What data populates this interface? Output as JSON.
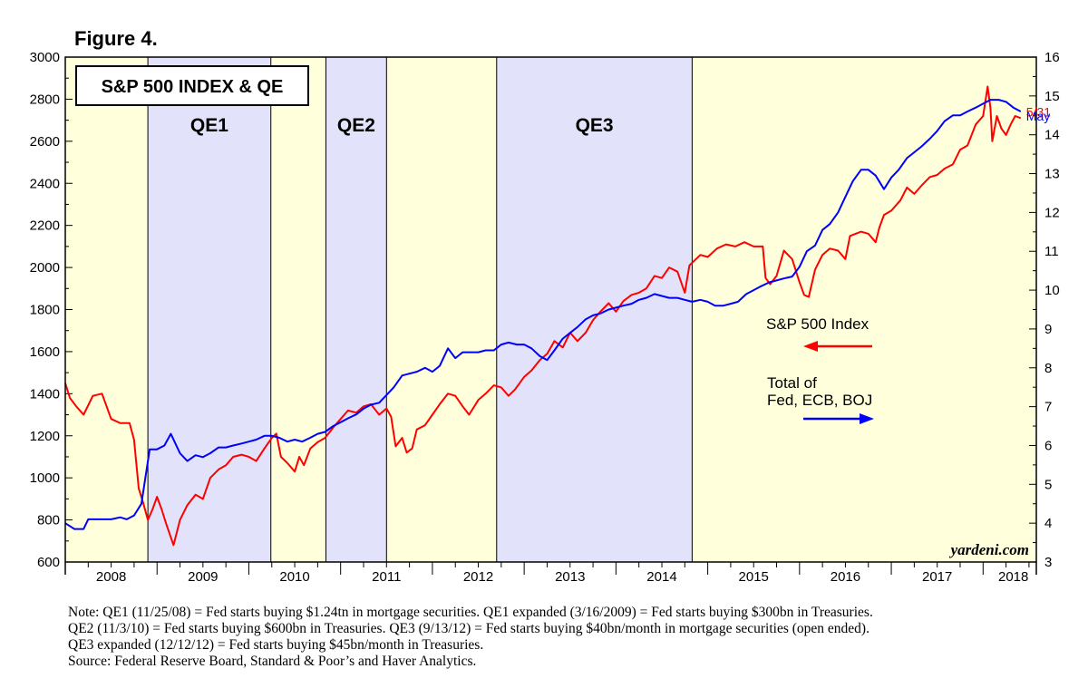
{
  "figure_label": "Figure 4.",
  "chart_data": {
    "type": "line",
    "title": "S&P 500 INDEX & QE",
    "credit": "yardeni.com",
    "x_range": [
      2008.0,
      2018.58
    ],
    "x_tick_labels": [
      "2008",
      "2009",
      "2010",
      "2011",
      "2012",
      "2013",
      "2014",
      "2015",
      "2016",
      "2017",
      "2018"
    ],
    "y_left": {
      "range": [
        600,
        3000
      ],
      "ticks": [
        600,
        800,
        1000,
        1200,
        1400,
        1600,
        1800,
        2000,
        2200,
        2400,
        2600,
        2800,
        3000
      ]
    },
    "y_right": {
      "range": [
        3,
        16
      ],
      "ticks": [
        3,
        4,
        5,
        6,
        7,
        8,
        9,
        10,
        11,
        12,
        13,
        14,
        15,
        16
      ]
    },
    "colors": {
      "panel": "#ffffdc",
      "qe_band": "#e2e3fa",
      "sp500": "#ff0000",
      "cb_assets": "#0000ff"
    },
    "qe_periods": [
      {
        "label": "QE1",
        "start": 2008.9,
        "end": 2010.24
      },
      {
        "label": "QE2",
        "start": 2010.84,
        "end": 2011.5
      },
      {
        "label": "QE3",
        "start": 2012.7,
        "end": 2014.83
      }
    ],
    "series": [
      {
        "name": "S&P 500 Index",
        "axis": "left",
        "end_label": "5/31",
        "points": [
          [
            2008.0,
            1450
          ],
          [
            2008.05,
            1380
          ],
          [
            2008.12,
            1340
          ],
          [
            2008.2,
            1300
          ],
          [
            2008.3,
            1390
          ],
          [
            2008.4,
            1400
          ],
          [
            2008.5,
            1280
          ],
          [
            2008.6,
            1260
          ],
          [
            2008.7,
            1260
          ],
          [
            2008.75,
            1180
          ],
          [
            2008.8,
            950
          ],
          [
            2008.85,
            880
          ],
          [
            2008.9,
            800
          ],
          [
            2008.95,
            850
          ],
          [
            2009.0,
            910
          ],
          [
            2009.05,
            850
          ],
          [
            2009.1,
            780
          ],
          [
            2009.18,
            680
          ],
          [
            2009.25,
            800
          ],
          [
            2009.33,
            870
          ],
          [
            2009.42,
            920
          ],
          [
            2009.5,
            900
          ],
          [
            2009.58,
            1000
          ],
          [
            2009.67,
            1040
          ],
          [
            2009.75,
            1060
          ],
          [
            2009.83,
            1100
          ],
          [
            2009.92,
            1110
          ],
          [
            2010.0,
            1100
          ],
          [
            2010.08,
            1080
          ],
          [
            2010.17,
            1140
          ],
          [
            2010.25,
            1190
          ],
          [
            2010.3,
            1210
          ],
          [
            2010.35,
            1100
          ],
          [
            2010.42,
            1070
          ],
          [
            2010.5,
            1030
          ],
          [
            2010.55,
            1100
          ],
          [
            2010.6,
            1060
          ],
          [
            2010.67,
            1140
          ],
          [
            2010.75,
            1170
          ],
          [
            2010.83,
            1190
          ],
          [
            2010.92,
            1240
          ],
          [
            2011.0,
            1280
          ],
          [
            2011.08,
            1320
          ],
          [
            2011.17,
            1310
          ],
          [
            2011.25,
            1340
          ],
          [
            2011.33,
            1350
          ],
          [
            2011.42,
            1300
          ],
          [
            2011.5,
            1330
          ],
          [
            2011.55,
            1290
          ],
          [
            2011.6,
            1150
          ],
          [
            2011.67,
            1190
          ],
          [
            2011.72,
            1120
          ],
          [
            2011.78,
            1140
          ],
          [
            2011.83,
            1230
          ],
          [
            2011.92,
            1250
          ],
          [
            2012.0,
            1300
          ],
          [
            2012.08,
            1350
          ],
          [
            2012.17,
            1400
          ],
          [
            2012.25,
            1390
          ],
          [
            2012.33,
            1340
          ],
          [
            2012.4,
            1300
          ],
          [
            2012.5,
            1370
          ],
          [
            2012.58,
            1400
          ],
          [
            2012.67,
            1440
          ],
          [
            2012.75,
            1430
          ],
          [
            2012.83,
            1390
          ],
          [
            2012.9,
            1420
          ],
          [
            2013.0,
            1480
          ],
          [
            2013.08,
            1510
          ],
          [
            2013.17,
            1560
          ],
          [
            2013.25,
            1590
          ],
          [
            2013.33,
            1650
          ],
          [
            2013.42,
            1620
          ],
          [
            2013.5,
            1690
          ],
          [
            2013.58,
            1650
          ],
          [
            2013.67,
            1690
          ],
          [
            2013.75,
            1750
          ],
          [
            2013.83,
            1790
          ],
          [
            2013.92,
            1830
          ],
          [
            2014.0,
            1790
          ],
          [
            2014.08,
            1840
          ],
          [
            2014.17,
            1870
          ],
          [
            2014.25,
            1880
          ],
          [
            2014.33,
            1900
          ],
          [
            2014.42,
            1960
          ],
          [
            2014.5,
            1950
          ],
          [
            2014.58,
            2000
          ],
          [
            2014.67,
            1980
          ],
          [
            2014.75,
            1880
          ],
          [
            2014.8,
            2010
          ],
          [
            2014.92,
            2060
          ],
          [
            2015.0,
            2050
          ],
          [
            2015.1,
            2090
          ],
          [
            2015.2,
            2110
          ],
          [
            2015.3,
            2100
          ],
          [
            2015.4,
            2120
          ],
          [
            2015.5,
            2100
          ],
          [
            2015.6,
            2100
          ],
          [
            2015.63,
            1950
          ],
          [
            2015.68,
            1920
          ],
          [
            2015.75,
            1960
          ],
          [
            2015.83,
            2080
          ],
          [
            2015.92,
            2040
          ],
          [
            2016.0,
            1930
          ],
          [
            2016.05,
            1870
          ],
          [
            2016.1,
            1860
          ],
          [
            2016.17,
            1990
          ],
          [
            2016.25,
            2060
          ],
          [
            2016.33,
            2090
          ],
          [
            2016.42,
            2080
          ],
          [
            2016.5,
            2040
          ],
          [
            2016.55,
            2150
          ],
          [
            2016.67,
            2170
          ],
          [
            2016.75,
            2160
          ],
          [
            2016.83,
            2120
          ],
          [
            2016.87,
            2190
          ],
          [
            2016.92,
            2250
          ],
          [
            2017.0,
            2270
          ],
          [
            2017.1,
            2320
          ],
          [
            2017.17,
            2380
          ],
          [
            2017.25,
            2350
          ],
          [
            2017.33,
            2390
          ],
          [
            2017.42,
            2430
          ],
          [
            2017.5,
            2440
          ],
          [
            2017.58,
            2470
          ],
          [
            2017.67,
            2490
          ],
          [
            2017.75,
            2560
          ],
          [
            2017.83,
            2580
          ],
          [
            2017.92,
            2680
          ],
          [
            2018.0,
            2720
          ],
          [
            2018.05,
            2860
          ],
          [
            2018.08,
            2760
          ],
          [
            2018.1,
            2600
          ],
          [
            2018.15,
            2720
          ],
          [
            2018.2,
            2660
          ],
          [
            2018.25,
            2630
          ],
          [
            2018.3,
            2680
          ],
          [
            2018.35,
            2720
          ],
          [
            2018.41,
            2710
          ]
        ]
      },
      {
        "name": "Total of Fed, ECB, BOJ",
        "axis": "right",
        "end_label": "May",
        "points": [
          [
            2008.0,
            4.0
          ],
          [
            2008.1,
            3.85
          ],
          [
            2008.2,
            3.85
          ],
          [
            2008.25,
            4.1
          ],
          [
            2008.4,
            4.1
          ],
          [
            2008.5,
            4.1
          ],
          [
            2008.6,
            4.15
          ],
          [
            2008.67,
            4.1
          ],
          [
            2008.75,
            4.2
          ],
          [
            2008.83,
            4.5
          ],
          [
            2008.92,
            5.9
          ],
          [
            2009.0,
            5.9
          ],
          [
            2009.08,
            6.0
          ],
          [
            2009.15,
            6.3
          ],
          [
            2009.25,
            5.8
          ],
          [
            2009.33,
            5.6
          ],
          [
            2009.42,
            5.75
          ],
          [
            2009.5,
            5.7
          ],
          [
            2009.58,
            5.8
          ],
          [
            2009.67,
            5.95
          ],
          [
            2009.75,
            5.95
          ],
          [
            2009.83,
            6.0
          ],
          [
            2009.92,
            6.05
          ],
          [
            2010.0,
            6.1
          ],
          [
            2010.08,
            6.15
          ],
          [
            2010.17,
            6.25
          ],
          [
            2010.25,
            6.25
          ],
          [
            2010.33,
            6.2
          ],
          [
            2010.42,
            6.1
          ],
          [
            2010.5,
            6.15
          ],
          [
            2010.58,
            6.1
          ],
          [
            2010.67,
            6.2
          ],
          [
            2010.75,
            6.3
          ],
          [
            2010.83,
            6.35
          ],
          [
            2010.92,
            6.5
          ],
          [
            2011.0,
            6.6
          ],
          [
            2011.08,
            6.7
          ],
          [
            2011.17,
            6.8
          ],
          [
            2011.25,
            6.95
          ],
          [
            2011.33,
            7.05
          ],
          [
            2011.42,
            7.1
          ],
          [
            2011.5,
            7.3
          ],
          [
            2011.58,
            7.5
          ],
          [
            2011.67,
            7.8
          ],
          [
            2011.75,
            7.85
          ],
          [
            2011.83,
            7.9
          ],
          [
            2011.92,
            8.0
          ],
          [
            2012.0,
            7.9
          ],
          [
            2012.08,
            8.05
          ],
          [
            2012.17,
            8.5
          ],
          [
            2012.25,
            8.25
          ],
          [
            2012.33,
            8.4
          ],
          [
            2012.42,
            8.4
          ],
          [
            2012.5,
            8.4
          ],
          [
            2012.58,
            8.45
          ],
          [
            2012.67,
            8.45
          ],
          [
            2012.75,
            8.6
          ],
          [
            2012.83,
            8.65
          ],
          [
            2012.92,
            8.6
          ],
          [
            2013.0,
            8.6
          ],
          [
            2013.08,
            8.5
          ],
          [
            2013.17,
            8.3
          ],
          [
            2013.25,
            8.2
          ],
          [
            2013.33,
            8.45
          ],
          [
            2013.42,
            8.75
          ],
          [
            2013.5,
            8.9
          ],
          [
            2013.58,
            9.05
          ],
          [
            2013.67,
            9.25
          ],
          [
            2013.75,
            9.35
          ],
          [
            2013.83,
            9.4
          ],
          [
            2013.92,
            9.5
          ],
          [
            2014.0,
            9.55
          ],
          [
            2014.08,
            9.6
          ],
          [
            2014.17,
            9.65
          ],
          [
            2014.25,
            9.75
          ],
          [
            2014.33,
            9.8
          ],
          [
            2014.42,
            9.9
          ],
          [
            2014.5,
            9.85
          ],
          [
            2014.58,
            9.8
          ],
          [
            2014.67,
            9.8
          ],
          [
            2014.75,
            9.75
          ],
          [
            2014.83,
            9.7
          ],
          [
            2014.92,
            9.75
          ],
          [
            2015.0,
            9.7
          ],
          [
            2015.08,
            9.6
          ],
          [
            2015.17,
            9.6
          ],
          [
            2015.25,
            9.65
          ],
          [
            2015.33,
            9.7
          ],
          [
            2015.42,
            9.9
          ],
          [
            2015.5,
            10.0
          ],
          [
            2015.58,
            10.1
          ],
          [
            2015.67,
            10.2
          ],
          [
            2015.75,
            10.25
          ],
          [
            2015.83,
            10.3
          ],
          [
            2015.92,
            10.35
          ],
          [
            2016.0,
            10.6
          ],
          [
            2016.08,
            11.0
          ],
          [
            2016.17,
            11.15
          ],
          [
            2016.25,
            11.55
          ],
          [
            2016.33,
            11.7
          ],
          [
            2016.42,
            12.0
          ],
          [
            2016.5,
            12.4
          ],
          [
            2016.58,
            12.8
          ],
          [
            2016.67,
            13.1
          ],
          [
            2016.75,
            13.1
          ],
          [
            2016.83,
            12.95
          ],
          [
            2016.92,
            12.6
          ],
          [
            2017.0,
            12.9
          ],
          [
            2017.08,
            13.1
          ],
          [
            2017.17,
            13.4
          ],
          [
            2017.25,
            13.55
          ],
          [
            2017.33,
            13.7
          ],
          [
            2017.42,
            13.9
          ],
          [
            2017.5,
            14.1
          ],
          [
            2017.58,
            14.35
          ],
          [
            2017.67,
            14.5
          ],
          [
            2017.75,
            14.5
          ],
          [
            2017.83,
            14.6
          ],
          [
            2017.92,
            14.7
          ],
          [
            2018.0,
            14.8
          ],
          [
            2018.08,
            14.9
          ],
          [
            2018.17,
            14.9
          ],
          [
            2018.25,
            14.85
          ],
          [
            2018.33,
            14.7
          ],
          [
            2018.41,
            14.6
          ]
        ]
      }
    ],
    "legend": {
      "sp500_label": "S&P 500 Index",
      "cb_label_line1": "Total of",
      "cb_label_line2": "Fed, ECB, BOJ"
    }
  },
  "notes": [
    "Note: QE1 (11/25/08) = Fed starts buying $1.24tn in mortgage securities. QE1 expanded (3/16/2009) = Fed starts buying $300bn in Treasuries.",
    "QE2 (11/3/10) = Fed starts buying $600bn in Treasuries. QE3 (9/13/12) = Fed starts buying $40bn/month in mortgage securities (open ended).",
    "QE3 expanded (12/12/12) = Fed starts buying $45bn/month in Treasuries.",
    "Source: Federal Reserve Board, Standard & Poor’s and Haver Analytics."
  ]
}
